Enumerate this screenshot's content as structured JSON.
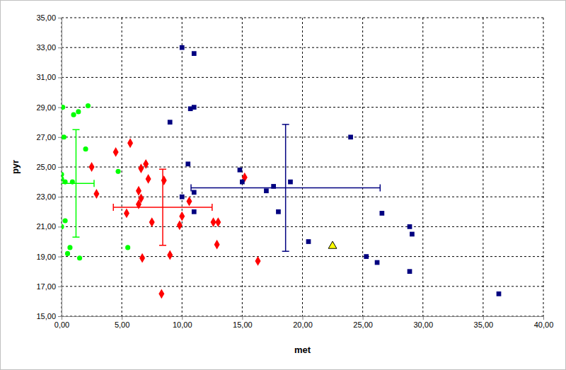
{
  "chart_data": {
    "type": "scatter",
    "x_label": "met",
    "y_label": "pyr",
    "xlim": [
      0,
      40
    ],
    "ylim": [
      15,
      35
    ],
    "xticks": [
      {
        "value": 0,
        "label": "0,00"
      },
      {
        "value": 5,
        "label": "5,00"
      },
      {
        "value": 10,
        "label": "10,00"
      },
      {
        "value": 15,
        "label": "15,00"
      },
      {
        "value": 20,
        "label": "20,00"
      },
      {
        "value": 25,
        "label": "25,00"
      },
      {
        "value": 30,
        "label": "30,00"
      },
      {
        "value": 35,
        "label": "35,00"
      },
      {
        "value": 40,
        "label": "40,00"
      }
    ],
    "yticks": [
      {
        "value": 15,
        "label": "15,00"
      },
      {
        "value": 17,
        "label": "17,00"
      },
      {
        "value": 19,
        "label": "19,00"
      },
      {
        "value": 21,
        "label": "21,00"
      },
      {
        "value": 23,
        "label": "23,00"
      },
      {
        "value": 25,
        "label": "25,00"
      },
      {
        "value": 27,
        "label": "27,00"
      },
      {
        "value": 29,
        "label": "29,00"
      },
      {
        "value": 31,
        "label": "31,00"
      },
      {
        "value": 33,
        "label": "33,00"
      },
      {
        "value": 35,
        "label": "35,00"
      }
    ],
    "grid": true,
    "series": [
      {
        "color": "#00ff00",
        "marker": "circle",
        "x": [
          0.1,
          1.0,
          1.4,
          2.2,
          2.0,
          0.2,
          0.0,
          0.0,
          0.3,
          0.9,
          4.7,
          0.3,
          0.0,
          0.5,
          0.7,
          1.5,
          5.5
        ],
        "y": [
          29.0,
          28.5,
          28.7,
          29.1,
          26.2,
          27.0,
          24.5,
          24.2,
          24.0,
          24.0,
          24.7,
          21.4,
          21.0,
          19.2,
          19.6,
          18.9,
          19.6
        ],
        "error_bar": {
          "x": 1.2,
          "y": 23.9,
          "xerr": 1.5,
          "yerr": 3.6
        }
      },
      {
        "color": "#ff0000",
        "marker": "diamond",
        "x": [
          4.5,
          5.7,
          2.5,
          2.9,
          6.6,
          7.0,
          7.2,
          6.4,
          6.6,
          6.4,
          5.4,
          7.5,
          6.7,
          8.3,
          9.0,
          8.5,
          9.8,
          10.0,
          10.6,
          12.6,
          13.0,
          12.9,
          15.2,
          16.3
        ],
        "y": [
          26.0,
          26.6,
          25.0,
          23.2,
          24.9,
          25.2,
          24.2,
          23.4,
          22.9,
          22.5,
          21.9,
          21.3,
          18.9,
          16.5,
          19.1,
          24.1,
          21.1,
          21.7,
          22.7,
          21.3,
          21.3,
          19.8,
          24.3,
          18.7
        ],
        "error_bar": {
          "x": 8.4,
          "y": 22.3,
          "xerr": 4.1,
          "yerr": 2.55
        }
      },
      {
        "color": "#000080",
        "marker": "square",
        "x": [
          10.0,
          11.0,
          10.7,
          11.0,
          9.0,
          10.5,
          10.0,
          11.0,
          11.0,
          14.8,
          15.0,
          17.0,
          17.6,
          18.0,
          19.0,
          20.5,
          24.0,
          26.6,
          25.3,
          26.2,
          28.9,
          29.1,
          28.9,
          36.3
        ],
        "y": [
          33.0,
          32.6,
          28.9,
          29.0,
          28.0,
          25.2,
          23.0,
          23.3,
          22.0,
          24.8,
          24.0,
          23.4,
          23.7,
          22.0,
          24.0,
          20.0,
          27.0,
          21.9,
          19.0,
          18.6,
          21.0,
          20.5,
          18.0,
          16.5
        ],
        "error_bar": {
          "x": 18.6,
          "y": 23.6,
          "xerr": 7.85,
          "yerr": 4.25
        }
      },
      {
        "color": "#ffff00",
        "marker": "triangle",
        "x": [
          22.5
        ],
        "y": [
          19.7
        ]
      }
    ]
  }
}
